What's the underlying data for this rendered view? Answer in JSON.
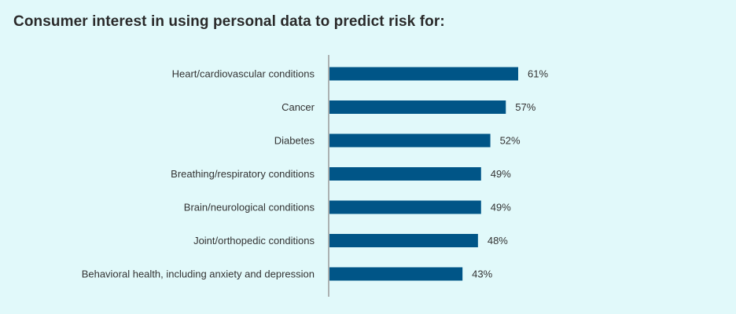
{
  "chart_data": {
    "type": "bar",
    "orientation": "horizontal",
    "title": "Consumer interest in using personal data to predict risk for:",
    "categories": [
      "Heart/cardiovascular conditions",
      "Cancer",
      "Diabetes",
      "Breathing/respiratory conditions",
      "Brain/neurological conditions",
      "Joint/orthopedic conditions",
      "Behavioral health, including anxiety and depression"
    ],
    "values": [
      61,
      57,
      52,
      49,
      49,
      48,
      43
    ],
    "value_labels": [
      "61%",
      "57%",
      "52%",
      "49%",
      "49%",
      "48%",
      "43%"
    ],
    "unit": "%",
    "xlim": [
      0,
      100
    ],
    "grid": false,
    "legend": "none",
    "bar_color": "#005587"
  }
}
